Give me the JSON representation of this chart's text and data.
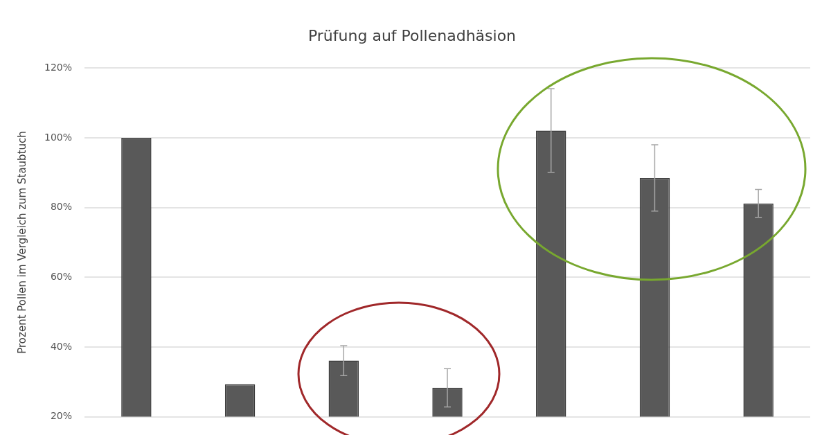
{
  "chart_data": {
    "type": "bar",
    "title": "Prüfung auf Pollenadhäsion",
    "ylabel": "Prozent Pollen im Vergleich zum Staubtuch",
    "categories": [
      null,
      null,
      null,
      null,
      null,
      null,
      null
    ],
    "values": [
      100,
      29.3,
      36.1,
      28.3,
      102.1,
      88.5,
      81.2
    ],
    "errors": [
      null,
      null,
      4.3,
      5.5,
      12,
      9.5,
      4
    ],
    "color": "#595959",
    "ylim": [
      20,
      120
    ],
    "yticks": [
      {
        "value": 20,
        "label": "20%"
      },
      {
        "value": 40,
        "label": "40%"
      },
      {
        "value": 60,
        "label": "60%"
      },
      {
        "value": 80,
        "label": "80%"
      },
      {
        "value": 100,
        "label": "100%"
      },
      {
        "value": 120,
        "label": "120%"
      }
    ],
    "grid": "y",
    "legend": false,
    "tick_labels": "y"
  }
}
